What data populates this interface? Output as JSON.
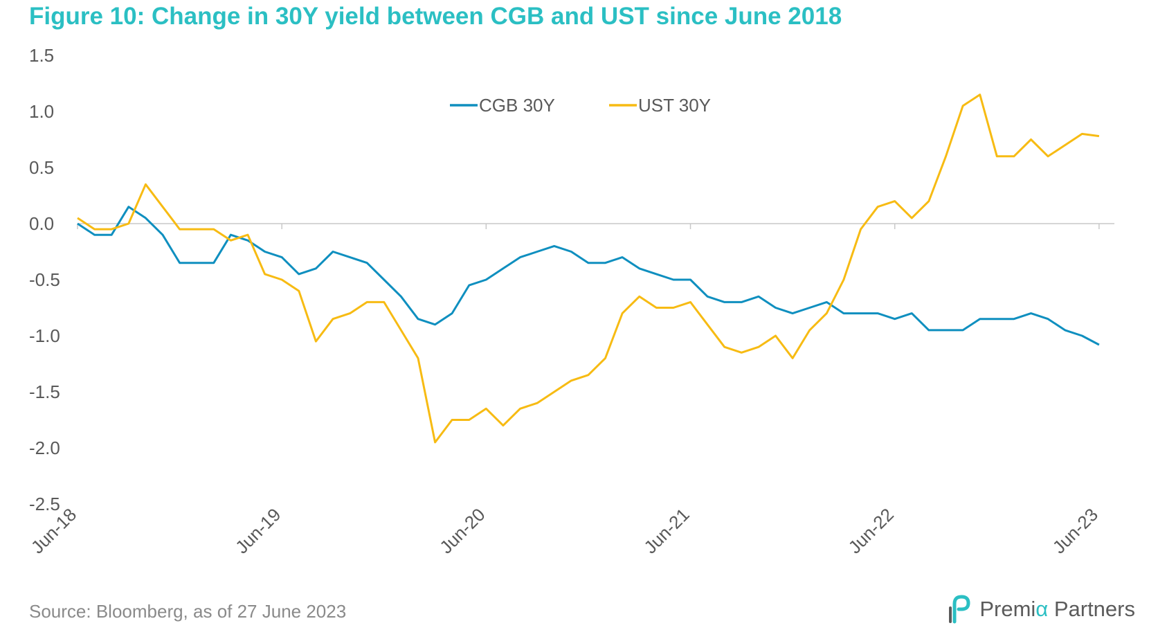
{
  "title": "Figure 10: Change in 30Y yield between CGB and UST since June 2018",
  "source": "Source: Bloomberg, as of 27 June 2023",
  "logo": {
    "text_pre": "Premi",
    "text_accent": "α",
    "text_post": " Partners",
    "mark_icon": "premia-logo-icon"
  },
  "colors": {
    "title": "#2bbfc3",
    "cgb": "#0f8fbf",
    "ust": "#f7bb13",
    "axis": "#c8c8c8",
    "text": "#595959"
  },
  "chart_data": {
    "type": "line",
    "title": "Figure 10: Change in 30Y yield between CGB and UST since June 2018",
    "xlabel": "",
    "ylabel": "",
    "ylim": [
      -2.5,
      1.5
    ],
    "yticks": [
      "1.5",
      "1.0",
      "0.5",
      "0.0",
      "-0.5",
      "-1.0",
      "-1.5",
      "-2.0",
      "-2.5"
    ],
    "xtick_labels": [
      "Jun-18",
      "Jun-19",
      "Jun-20",
      "Jun-21",
      "Jun-22",
      "Jun-23"
    ],
    "legend": {
      "position": "top-center"
    },
    "grid": false,
    "series": [
      {
        "name": "CGB 30Y",
        "color": "#0f8fbf",
        "x": [
          "2018-06",
          "2018-07",
          "2018-08",
          "2018-09",
          "2018-10",
          "2018-11",
          "2018-12",
          "2019-01",
          "2019-02",
          "2019-03",
          "2019-04",
          "2019-05",
          "2019-06",
          "2019-07",
          "2019-08",
          "2019-09",
          "2019-10",
          "2019-11",
          "2019-12",
          "2020-01",
          "2020-02",
          "2020-03",
          "2020-04",
          "2020-05",
          "2020-06",
          "2020-07",
          "2020-08",
          "2020-09",
          "2020-10",
          "2020-11",
          "2020-12",
          "2021-01",
          "2021-02",
          "2021-03",
          "2021-04",
          "2021-05",
          "2021-06",
          "2021-07",
          "2021-08",
          "2021-09",
          "2021-10",
          "2021-11",
          "2021-12",
          "2022-01",
          "2022-02",
          "2022-03",
          "2022-04",
          "2022-05",
          "2022-06",
          "2022-07",
          "2022-08",
          "2022-09",
          "2022-10",
          "2022-11",
          "2022-12",
          "2023-01",
          "2023-02",
          "2023-03",
          "2023-04",
          "2023-05",
          "2023-06"
        ],
        "values": [
          0.0,
          -0.1,
          -0.1,
          0.15,
          0.05,
          -0.1,
          -0.35,
          -0.35,
          -0.35,
          -0.1,
          -0.15,
          -0.25,
          -0.3,
          -0.45,
          -0.4,
          -0.25,
          -0.3,
          -0.35,
          -0.5,
          -0.65,
          -0.85,
          -0.9,
          -0.8,
          -0.55,
          -0.5,
          -0.4,
          -0.3,
          -0.25,
          -0.2,
          -0.25,
          -0.35,
          -0.35,
          -0.3,
          -0.4,
          -0.45,
          -0.5,
          -0.5,
          -0.65,
          -0.7,
          -0.7,
          -0.65,
          -0.75,
          -0.8,
          -0.75,
          -0.7,
          -0.8,
          -0.8,
          -0.8,
          -0.85,
          -0.8,
          -0.95,
          -0.95,
          -0.95,
          -0.85,
          -0.85,
          -0.85,
          -0.8,
          -0.85,
          -0.95,
          -1.0,
          -1.08
        ]
      },
      {
        "name": "UST 30Y",
        "color": "#f7bb13",
        "x": [
          "2018-06",
          "2018-07",
          "2018-08",
          "2018-09",
          "2018-10",
          "2018-11",
          "2018-12",
          "2019-01",
          "2019-02",
          "2019-03",
          "2019-04",
          "2019-05",
          "2019-06",
          "2019-07",
          "2019-08",
          "2019-09",
          "2019-10",
          "2019-11",
          "2019-12",
          "2020-01",
          "2020-02",
          "2020-03",
          "2020-04",
          "2020-05",
          "2020-06",
          "2020-07",
          "2020-08",
          "2020-09",
          "2020-10",
          "2020-11",
          "2020-12",
          "2021-01",
          "2021-02",
          "2021-03",
          "2021-04",
          "2021-05",
          "2021-06",
          "2021-07",
          "2021-08",
          "2021-09",
          "2021-10",
          "2021-11",
          "2021-12",
          "2022-01",
          "2022-02",
          "2022-03",
          "2022-04",
          "2022-05",
          "2022-06",
          "2022-07",
          "2022-08",
          "2022-09",
          "2022-10",
          "2022-11",
          "2022-12",
          "2023-01",
          "2023-02",
          "2023-03",
          "2023-04",
          "2023-05",
          "2023-06"
        ],
        "values": [
          0.05,
          -0.05,
          -0.05,
          0.0,
          0.35,
          0.15,
          -0.05,
          -0.05,
          -0.05,
          -0.15,
          -0.1,
          -0.45,
          -0.5,
          -0.6,
          -1.05,
          -0.85,
          -0.8,
          -0.7,
          -0.7,
          -0.95,
          -1.2,
          -1.95,
          -1.75,
          -1.75,
          -1.65,
          -1.8,
          -1.65,
          -1.6,
          -1.5,
          -1.4,
          -1.35,
          -1.2,
          -0.8,
          -0.65,
          -0.75,
          -0.75,
          -0.7,
          -0.9,
          -1.1,
          -1.15,
          -1.1,
          -1.0,
          -1.2,
          -0.95,
          -0.8,
          -0.5,
          -0.05,
          0.15,
          0.2,
          0.05,
          0.2,
          0.6,
          1.05,
          1.15,
          0.6,
          0.6,
          0.75,
          0.6,
          0.7,
          0.8,
          0.78
        ]
      }
    ]
  }
}
